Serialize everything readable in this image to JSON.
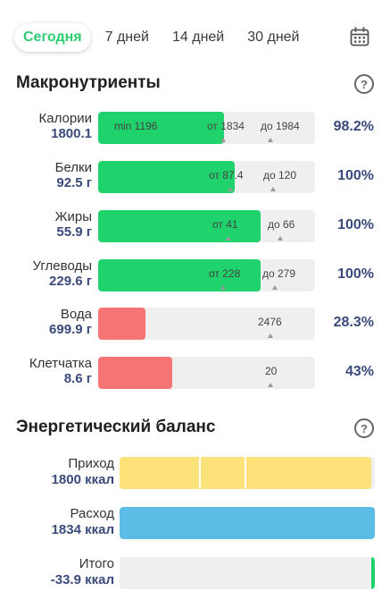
{
  "tabs": [
    {
      "label": "Сегодня",
      "active": true
    },
    {
      "label": "7 дней",
      "active": false
    },
    {
      "label": "14 дней",
      "active": false
    },
    {
      "label": "30 дней",
      "active": false
    }
  ],
  "macros": {
    "title": "Макронутриенты",
    "help": "?",
    "items": [
      {
        "name": "Калории",
        "value": "1800.1",
        "fill": 0.58,
        "color": "#1fd26b",
        "mark_a": "min 1196",
        "mark_b": "от 1834",
        "mark_c": "до 1984",
        "pct": "98.2%"
      },
      {
        "name": "Белки",
        "value": "92.5 г",
        "fill": 0.63,
        "color": "#1fd26b",
        "mark_a": "",
        "mark_b": "от 87.4",
        "mark_c": "до 120",
        "pct": "100%"
      },
      {
        "name": "Жиры",
        "value": "55.9 г",
        "fill": 0.75,
        "color": "#1fd26b",
        "mark_a": "",
        "mark_b": "от 41",
        "mark_c": "до 66",
        "pct": "100%"
      },
      {
        "name": "Углеводы",
        "value": "229.6 г",
        "fill": 0.75,
        "color": "#1fd26b",
        "mark_a": "",
        "mark_b": "от 228",
        "mark_c": "до 279",
        "pct": "100%"
      },
      {
        "name": "Вода",
        "value": "699.9 г",
        "fill": 0.22,
        "color": "#f77474",
        "mark_a": "",
        "mark_b": "",
        "mark_c": "2476",
        "pct": "28.3%"
      },
      {
        "name": "Клетчатка",
        "value": "8.6 г",
        "fill": 0.34,
        "color": "#f77474",
        "mark_a": "",
        "mark_b": "",
        "mark_c": "20",
        "pct": "43%"
      }
    ]
  },
  "energy": {
    "title": "Энергетический баланс",
    "help": "?",
    "items": [
      {
        "name": "Приход",
        "value": "1800 ккал",
        "fill": 0.985,
        "color": "#fde27a"
      },
      {
        "name": "Расход",
        "value": "1834 ккал",
        "fill": 1.0,
        "color": "#5bbde6"
      },
      {
        "name": "Итого",
        "value": "-33.9 ккал",
        "fill": 0.0,
        "color": "#1fd26b"
      }
    ]
  }
}
